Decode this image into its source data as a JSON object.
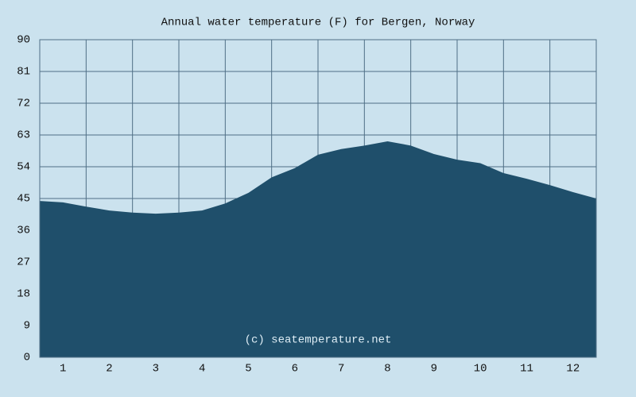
{
  "chart_data": {
    "type": "area",
    "title": "Annual water temperature (F) for Bergen, Norway",
    "annotation": "(c) seatemperature.net",
    "x": [
      0.5,
      1,
      1.5,
      2,
      2.5,
      3,
      3.5,
      4,
      4.5,
      5,
      5.5,
      6,
      6.5,
      7,
      7.5,
      8,
      8.5,
      9,
      9.5,
      10,
      10.5,
      11,
      11.5,
      12,
      12.5
    ],
    "values": [
      44.3,
      43.9,
      42.7,
      41.6,
      41,
      40.7,
      41,
      41.6,
      43.6,
      46.6,
      51,
      53.6,
      57.4,
      59,
      60,
      61.2,
      60,
      57.6,
      56,
      55,
      52.2,
      50.6,
      48.8,
      46.8,
      45
    ],
    "color": "#1f4f6b",
    "xlim": [
      0.5,
      12.5
    ],
    "xticks": [
      1,
      2,
      3,
      4,
      5,
      6,
      7,
      8,
      9,
      10,
      11,
      12
    ],
    "ylim": [
      0,
      90
    ],
    "yticks": [
      0,
      9,
      18,
      27,
      36,
      45,
      54,
      63,
      72,
      81,
      90
    ],
    "grid": true
  }
}
